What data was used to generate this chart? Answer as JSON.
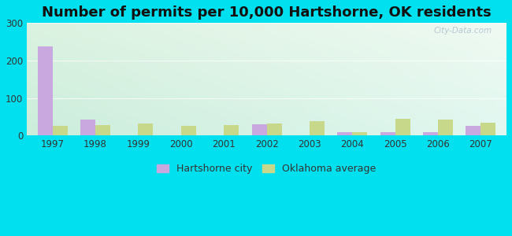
{
  "title": "Number of permits per 10,000 Hartshorne, OK residents",
  "years": [
    1997,
    1998,
    1999,
    2000,
    2001,
    2002,
    2003,
    2004,
    2005,
    2006,
    2007
  ],
  "hartshorne": [
    238,
    42,
    0,
    0,
    0,
    30,
    0,
    8,
    8,
    8,
    25
  ],
  "oklahoma": [
    25,
    28,
    32,
    25,
    28,
    32,
    38,
    8,
    45,
    42,
    35
  ],
  "hartshorne_color": "#c9a8e0",
  "oklahoma_color": "#c8d88a",
  "bar_width": 0.35,
  "ylim": [
    0,
    300
  ],
  "yticks": [
    0,
    100,
    200,
    300
  ],
  "title_fontsize": 13,
  "legend_label_hartshorne": "Hartshorne city",
  "legend_label_oklahoma": "Oklahoma average",
  "background_outer": "#00e0ee",
  "watermark": "City-Data.com",
  "bg_top_left": "#d6edd6",
  "bg_top_right": "#e8f5f0",
  "bg_bottom_left": "#c8e8d8",
  "bg_bottom_right": "#d8f0ec"
}
